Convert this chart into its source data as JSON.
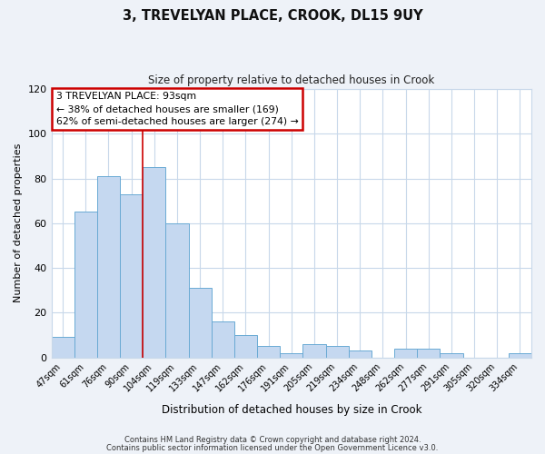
{
  "title": "3, TREVELYAN PLACE, CROOK, DL15 9UY",
  "subtitle": "Size of property relative to detached houses in Crook",
  "xlabel": "Distribution of detached houses by size in Crook",
  "ylabel": "Number of detached properties",
  "bar_labels": [
    "47sqm",
    "61sqm",
    "76sqm",
    "90sqm",
    "104sqm",
    "119sqm",
    "133sqm",
    "147sqm",
    "162sqm",
    "176sqm",
    "191sqm",
    "205sqm",
    "219sqm",
    "234sqm",
    "248sqm",
    "262sqm",
    "277sqm",
    "291sqm",
    "305sqm",
    "320sqm",
    "334sqm"
  ],
  "bar_values": [
    9,
    65,
    81,
    73,
    85,
    60,
    31,
    16,
    10,
    5,
    2,
    6,
    5,
    3,
    0,
    4,
    4,
    2,
    0,
    0,
    2
  ],
  "bar_color": "#c5d8f0",
  "bar_edge_color": "#6aaad4",
  "ylim": [
    0,
    120
  ],
  "yticks": [
    0,
    20,
    40,
    60,
    80,
    100,
    120
  ],
  "vline_x_idx": 3,
  "vline_color": "#cc0000",
  "annotation_line1": "3 TREVELYAN PLACE: 93sqm",
  "annotation_line2": "← 38% of detached houses are smaller (169)",
  "annotation_line3": "62% of semi-detached houses are larger (274) →",
  "annotation_box_color": "#ffffff",
  "annotation_box_edge": "#cc0000",
  "footer1": "Contains HM Land Registry data © Crown copyright and database right 2024.",
  "footer2": "Contains public sector information licensed under the Open Government Licence v3.0.",
  "background_color": "#eef2f8",
  "plot_bg_color": "#ffffff",
  "grid_color": "#c8d8ea",
  "title_fontsize": 10.5,
  "subtitle_fontsize": 8.5
}
